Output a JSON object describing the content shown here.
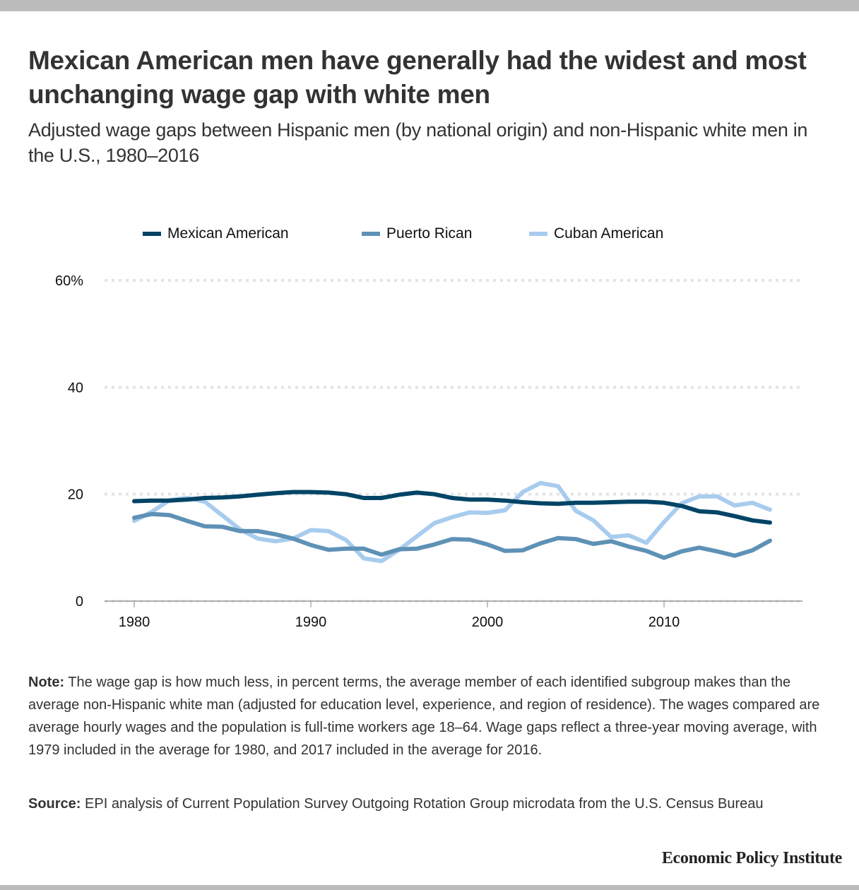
{
  "header": {
    "title": "Mexican American men have generally had the widest and most unchanging wage gap with white men",
    "subtitle": "Adjusted wage gaps between Hispanic men (by national origin) and non-Hispanic white men in the U.S., 1980–2016"
  },
  "legend": [
    {
      "label": "Mexican American",
      "color": "#004466"
    },
    {
      "label": "Puerto Rican",
      "color": "#5e91b6"
    },
    {
      "label": "Cuban American",
      "color": "#a8ccee"
    }
  ],
  "chart_data": {
    "type": "line",
    "title": "Mexican American men have generally had the widest and most unchanging wage gap with white men",
    "subtitle": "Adjusted wage gaps between Hispanic men (by national origin) and non-Hispanic white men in the U.S., 1980–2016",
    "xlabel": "",
    "ylabel": "",
    "x": [
      1980,
      1981,
      1982,
      1983,
      1984,
      1985,
      1986,
      1987,
      1988,
      1989,
      1990,
      1991,
      1992,
      1993,
      1994,
      1995,
      1996,
      1997,
      1998,
      1999,
      2000,
      2001,
      2002,
      2003,
      2004,
      2005,
      2006,
      2007,
      2008,
      2009,
      2010,
      2011,
      2012,
      2013,
      2014,
      2015,
      2016
    ],
    "xlim": [
      1978,
      2018
    ],
    "ylim": [
      0,
      60
    ],
    "x_ticks": [
      1980,
      1990,
      2000,
      2010
    ],
    "x_tick_labels": [
      "1980",
      "1990",
      "2000",
      "2010"
    ],
    "y_ticks": [
      0,
      20,
      40,
      60
    ],
    "y_tick_labels": [
      "0",
      "20",
      "40",
      "60%"
    ],
    "grid": "horizontal dotted",
    "legend_position": "top-center",
    "series": [
      {
        "name": "Mexican American",
        "color": "#004466",
        "values": [
          18.7,
          18.8,
          18.8,
          19.0,
          19.3,
          19.4,
          19.6,
          19.9,
          20.2,
          20.4,
          20.4,
          20.3,
          20.0,
          19.3,
          19.3,
          19.9,
          20.3,
          20.0,
          19.3,
          19.0,
          19.0,
          18.8,
          18.5,
          18.3,
          18.2,
          18.4,
          18.4,
          18.5,
          18.6,
          18.6,
          18.4,
          17.8,
          16.8,
          16.6,
          15.9,
          15.1,
          14.7
        ]
      },
      {
        "name": "Puerto Rican",
        "color": "#5e91b6",
        "values": [
          15.6,
          16.3,
          16.1,
          15.0,
          14.0,
          13.9,
          13.1,
          13.1,
          12.5,
          11.7,
          10.5,
          9.6,
          9.8,
          9.8,
          8.7,
          9.7,
          9.8,
          10.6,
          11.6,
          11.5,
          10.6,
          9.4,
          9.5,
          10.8,
          11.8,
          11.6,
          10.7,
          11.2,
          10.2,
          9.4,
          8.1,
          9.3,
          10.0,
          9.3,
          8.5,
          9.5,
          11.3
        ]
      },
      {
        "name": "Cuban American",
        "color": "#a8ccee",
        "values": [
          15.0,
          16.7,
          18.9,
          19.3,
          18.6,
          16.0,
          13.4,
          11.7,
          11.2,
          11.7,
          13.3,
          13.1,
          11.4,
          8.0,
          7.5,
          9.6,
          12.1,
          14.6,
          15.7,
          16.6,
          16.5,
          17.0,
          20.4,
          22.1,
          21.5,
          16.9,
          15.1,
          12.0,
          12.3,
          10.9,
          14.8,
          18.3,
          19.6,
          19.6,
          17.9,
          18.4,
          17.1
        ]
      }
    ]
  },
  "footer": {
    "note_label": "Note:",
    "note_text": " The wage gap is how much less, in percent terms, the average member of each identified subgroup makes than the average non-Hispanic white man (adjusted for education level, experience, and region of residence). The wages compared are average hourly wages and the population is full-time workers age 18–64. Wage gaps reflect a three-year moving average, with 1979 included in the average for 1980, and 2017 included in the average for 2016.",
    "source_label": "Source:",
    "source_text": " EPI analysis of Current Population Survey Outgoing Rotation Group microdata from the U.S. Census Bureau",
    "brand": "Economic Policy Institute"
  }
}
